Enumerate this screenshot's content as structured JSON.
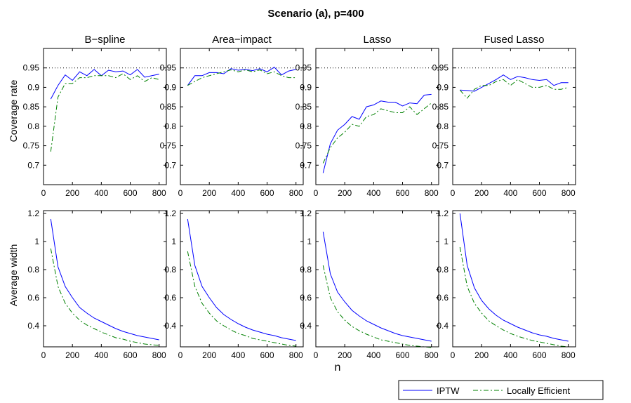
{
  "figure": {
    "title": "Scenario (a), p=400",
    "xlabel": "n",
    "row_ylabels": [
      "Coverage rate",
      "Average width"
    ],
    "reference_line": {
      "y": 0.95,
      "rows": [
        0
      ],
      "style": "dotted"
    }
  },
  "legend": {
    "placement": "bottom-right",
    "entries": [
      {
        "name": "IPTW",
        "color": "#0000ff",
        "dash": "solid"
      },
      {
        "name": "Locally Efficient",
        "color": "#008000",
        "dash": "dashdot"
      }
    ]
  },
  "chart_data": [
    {
      "type": "line",
      "row": 0,
      "col": 0,
      "title": "B−spline",
      "xlim": [
        0,
        850
      ],
      "ylim": [
        0.65,
        1.0
      ],
      "xticks": [
        0,
        200,
        400,
        600,
        800
      ],
      "xticklabels": [
        "0",
        "200",
        "400",
        "600",
        "800"
      ],
      "yticks": [
        0.7,
        0.75,
        0.8,
        0.85,
        0.9,
        0.95
      ],
      "yticklabels": [
        "0.7",
        "0.75",
        "0.8",
        "0.85",
        "0.9",
        "0.95"
      ],
      "x": [
        50,
        100,
        150,
        200,
        250,
        300,
        350,
        400,
        450,
        500,
        550,
        600,
        650,
        700,
        750,
        800
      ],
      "series": [
        {
          "name": "IPTW",
          "values": [
            0.87,
            0.905,
            0.932,
            0.918,
            0.94,
            0.93,
            0.946,
            0.93,
            0.944,
            0.94,
            0.942,
            0.932,
            0.946,
            0.926,
            0.93,
            0.934
          ]
        },
        {
          "name": "Locally Efficient",
          "values": [
            0.735,
            0.875,
            0.91,
            0.91,
            0.925,
            0.925,
            0.93,
            0.93,
            0.93,
            0.925,
            0.935,
            0.92,
            0.93,
            0.915,
            0.925,
            0.92
          ]
        }
      ]
    },
    {
      "type": "line",
      "row": 0,
      "col": 1,
      "title": "Area−impact",
      "xlim": [
        0,
        850
      ],
      "ylim": [
        0.65,
        1.0
      ],
      "xticks": [
        0,
        200,
        400,
        600,
        800
      ],
      "xticklabels": [
        "0",
        "200",
        "400",
        "600",
        "800"
      ],
      "yticks": [
        0.7,
        0.75,
        0.8,
        0.85,
        0.9,
        0.95
      ],
      "yticklabels": [
        "0.7",
        "0.75",
        "0.8",
        "0.85",
        "0.9",
        "0.95"
      ],
      "x": [
        50,
        100,
        150,
        200,
        250,
        300,
        350,
        400,
        450,
        500,
        550,
        600,
        650,
        700,
        750,
        800
      ],
      "series": [
        {
          "name": "IPTW",
          "values": [
            0.905,
            0.93,
            0.93,
            0.938,
            0.938,
            0.935,
            0.948,
            0.944,
            0.946,
            0.943,
            0.948,
            0.94,
            0.952,
            0.932,
            0.942,
            0.946
          ]
        },
        {
          "name": "Locally Efficient",
          "values": [
            0.905,
            0.915,
            0.925,
            0.93,
            0.935,
            0.94,
            0.945,
            0.94,
            0.945,
            0.94,
            0.945,
            0.935,
            0.94,
            0.93,
            0.925,
            0.925
          ]
        }
      ]
    },
    {
      "type": "line",
      "row": 0,
      "col": 2,
      "title": "Lasso",
      "xlim": [
        0,
        850
      ],
      "ylim": [
        0.65,
        1.0
      ],
      "xticks": [
        0,
        200,
        400,
        600,
        800
      ],
      "xticklabels": [
        "0",
        "200",
        "400",
        "600",
        "800"
      ],
      "yticks": [
        0.7,
        0.75,
        0.8,
        0.85,
        0.9,
        0.95
      ],
      "yticklabels": [
        "0.7",
        "0.75",
        "0.8",
        "0.85",
        "0.9",
        "0.95"
      ],
      "x": [
        50,
        100,
        150,
        200,
        250,
        300,
        350,
        400,
        450,
        500,
        550,
        600,
        650,
        700,
        750,
        800
      ],
      "series": [
        {
          "name": "IPTW",
          "values": [
            0.68,
            0.755,
            0.79,
            0.805,
            0.825,
            0.818,
            0.85,
            0.855,
            0.865,
            0.862,
            0.862,
            0.852,
            0.86,
            0.858,
            0.88,
            0.882
          ]
        },
        {
          "name": "Locally Efficient",
          "values": [
            0.705,
            0.745,
            0.77,
            0.785,
            0.805,
            0.8,
            0.825,
            0.83,
            0.845,
            0.84,
            0.835,
            0.835,
            0.85,
            0.83,
            0.845,
            0.86
          ]
        }
      ]
    },
    {
      "type": "line",
      "row": 0,
      "col": 3,
      "title": "Fused Lasso",
      "xlim": [
        0,
        850
      ],
      "ylim": [
        0.65,
        1.0
      ],
      "xticks": [
        0,
        200,
        400,
        600,
        800
      ],
      "xticklabels": [
        "0",
        "200",
        "400",
        "600",
        "800"
      ],
      "yticks": [
        0.7,
        0.75,
        0.8,
        0.85,
        0.9,
        0.95
      ],
      "yticklabels": [
        "0.7",
        "0.75",
        "0.8",
        "0.85",
        "0.9",
        "0.95"
      ],
      "x": [
        50,
        100,
        150,
        200,
        250,
        300,
        350,
        400,
        450,
        500,
        550,
        600,
        650,
        700,
        750,
        800
      ],
      "series": [
        {
          "name": "IPTW",
          "values": [
            0.893,
            0.892,
            0.89,
            0.9,
            0.91,
            0.92,
            0.932,
            0.92,
            0.928,
            0.925,
            0.92,
            0.918,
            0.92,
            0.905,
            0.912,
            0.912
          ]
        },
        {
          "name": "Locally Efficient",
          "values": [
            0.893,
            0.872,
            0.895,
            0.905,
            0.905,
            0.915,
            0.92,
            0.905,
            0.92,
            0.91,
            0.9,
            0.9,
            0.905,
            0.895,
            0.895,
            0.9
          ]
        }
      ]
    },
    {
      "type": "line",
      "row": 1,
      "col": 0,
      "title": "",
      "xlim": [
        0,
        850
      ],
      "ylim": [
        0.25,
        1.22
      ],
      "xticks": [
        0,
        200,
        400,
        600,
        800
      ],
      "xticklabels": [
        "0",
        "200",
        "400",
        "600",
        "800"
      ],
      "yticks": [
        0.4,
        0.6,
        0.8,
        1.0,
        1.2
      ],
      "yticklabels": [
        "0.4",
        "0.6",
        "0.8",
        "1",
        "1.2"
      ],
      "x": [
        50,
        100,
        150,
        200,
        250,
        300,
        350,
        400,
        450,
        500,
        550,
        600,
        650,
        700,
        750,
        800
      ],
      "series": [
        {
          "name": "IPTW",
          "values": [
            1.16,
            0.82,
            0.68,
            0.6,
            0.53,
            0.49,
            0.455,
            0.43,
            0.405,
            0.38,
            0.36,
            0.345,
            0.33,
            0.32,
            0.31,
            0.3
          ]
        },
        {
          "name": "Locally Efficient",
          "values": [
            0.95,
            0.68,
            0.56,
            0.49,
            0.44,
            0.405,
            0.38,
            0.355,
            0.335,
            0.315,
            0.305,
            0.29,
            0.28,
            0.27,
            0.265,
            0.26
          ]
        }
      ]
    },
    {
      "type": "line",
      "row": 1,
      "col": 1,
      "title": "",
      "xlim": [
        0,
        850
      ],
      "ylim": [
        0.25,
        1.22
      ],
      "xticks": [
        0,
        200,
        400,
        600,
        800
      ],
      "xticklabels": [
        "0",
        "200",
        "400",
        "600",
        "800"
      ],
      "yticks": [
        0.4,
        0.6,
        0.8,
        1.0,
        1.2
      ],
      "yticklabels": [
        "0.4",
        "0.6",
        "0.8",
        "1",
        "1.2"
      ],
      "x": [
        50,
        100,
        150,
        200,
        250,
        300,
        350,
        400,
        450,
        500,
        550,
        600,
        650,
        700,
        750,
        800
      ],
      "series": [
        {
          "name": "IPTW",
          "values": [
            1.16,
            0.83,
            0.68,
            0.6,
            0.53,
            0.48,
            0.445,
            0.415,
            0.39,
            0.37,
            0.355,
            0.34,
            0.33,
            0.315,
            0.305,
            0.295
          ]
        },
        {
          "name": "Locally Efficient",
          "values": [
            0.93,
            0.68,
            0.56,
            0.49,
            0.435,
            0.4,
            0.37,
            0.345,
            0.33,
            0.31,
            0.3,
            0.29,
            0.28,
            0.27,
            0.26,
            0.255
          ]
        }
      ]
    },
    {
      "type": "line",
      "row": 1,
      "col": 2,
      "title": "",
      "xlim": [
        0,
        850
      ],
      "ylim": [
        0.25,
        1.22
      ],
      "xticks": [
        0,
        200,
        400,
        600,
        800
      ],
      "xticklabels": [
        "0",
        "200",
        "400",
        "600",
        "800"
      ],
      "yticks": [
        0.4,
        0.6,
        0.8,
        1.0,
        1.2
      ],
      "yticklabels": [
        "0.4",
        "0.6",
        "0.8",
        "1",
        "1.2"
      ],
      "x": [
        50,
        100,
        150,
        200,
        250,
        300,
        350,
        400,
        450,
        500,
        550,
        600,
        650,
        700,
        750,
        800
      ],
      "series": [
        {
          "name": "IPTW",
          "values": [
            1.07,
            0.77,
            0.64,
            0.57,
            0.51,
            0.47,
            0.435,
            0.41,
            0.385,
            0.365,
            0.345,
            0.33,
            0.32,
            0.31,
            0.3,
            0.29
          ]
        },
        {
          "name": "Locally Efficient",
          "values": [
            0.83,
            0.6,
            0.5,
            0.44,
            0.395,
            0.365,
            0.34,
            0.32,
            0.3,
            0.29,
            0.28,
            0.27,
            0.26,
            0.255,
            0.25,
            0.245
          ]
        }
      ]
    },
    {
      "type": "line",
      "row": 1,
      "col": 3,
      "title": "",
      "xlim": [
        0,
        850
      ],
      "ylim": [
        0.25,
        1.22
      ],
      "xticks": [
        0,
        200,
        400,
        600,
        800
      ],
      "xticklabels": [
        "0",
        "200",
        "400",
        "600",
        "800"
      ],
      "yticks": [
        0.4,
        0.6,
        0.8,
        1.0,
        1.2
      ],
      "yticklabels": [
        "0.4",
        "0.6",
        "0.8",
        "1",
        "1.2"
      ],
      "x": [
        50,
        100,
        150,
        200,
        250,
        300,
        350,
        400,
        450,
        500,
        550,
        600,
        650,
        700,
        750,
        800
      ],
      "series": [
        {
          "name": "IPTW",
          "values": [
            1.2,
            0.83,
            0.67,
            0.58,
            0.52,
            0.475,
            0.44,
            0.415,
            0.39,
            0.37,
            0.35,
            0.335,
            0.325,
            0.31,
            0.3,
            0.29
          ]
        },
        {
          "name": "Locally Efficient",
          "values": [
            0.96,
            0.68,
            0.56,
            0.49,
            0.435,
            0.4,
            0.37,
            0.345,
            0.325,
            0.31,
            0.295,
            0.285,
            0.275,
            0.265,
            0.255,
            0.25
          ]
        }
      ]
    }
  ]
}
